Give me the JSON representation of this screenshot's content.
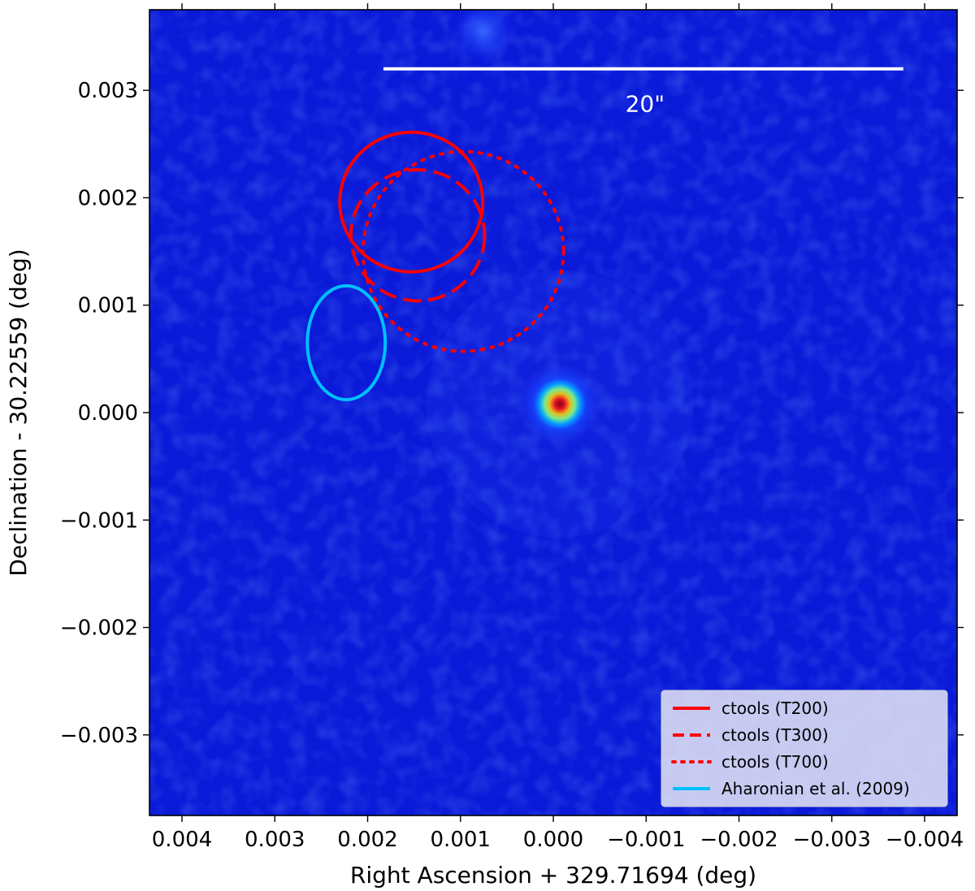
{
  "chart_data": {
    "type": "image",
    "xlabel": "Right Ascension + 329.71694 (deg)",
    "ylabel": "Declination - 30.22559 (deg)",
    "x_inverted": true,
    "xlim": [
      0.00435,
      -0.00435
    ],
    "ylim": [
      -0.00375,
      0.00375
    ],
    "x_ticks": [
      0.004,
      0.003,
      0.002,
      0.001,
      0.0,
      -0.001,
      -0.002,
      -0.003,
      -0.004
    ],
    "x_tick_labels": [
      "0.004",
      "0.003",
      "0.002",
      "0.001",
      "0.000",
      "−0.001",
      "−0.002",
      "−0.003",
      "−0.004"
    ],
    "y_ticks": [
      0.003,
      0.002,
      0.001,
      0.0,
      -0.001,
      -0.002,
      -0.003
    ],
    "y_tick_labels": [
      "0.003",
      "0.002",
      "0.001",
      "0.000",
      "−0.001",
      "−0.002",
      "−0.003"
    ],
    "colormap": "jet",
    "sources": [
      {
        "x": -7e-05,
        "y": 8e-05,
        "sigma": 0.00016,
        "peak": 1.0
      },
      {
        "x": 0.00075,
        "y": 0.00355,
        "sigma": 0.00015,
        "peak": 0.12
      }
    ],
    "scale_bar": {
      "x_start": 0.00183,
      "x_end": -0.00377,
      "y": 0.0032,
      "label": "20\""
    },
    "legend_position": "lower-right",
    "regions": [
      {
        "name": "ctools (T200)",
        "style": "solid",
        "color": "#ff0000",
        "cx": 0.00153,
        "cy": 0.00196,
        "rx": 0.00077,
        "ry": 0.00065
      },
      {
        "name": "ctools (T300)",
        "style": "dashed",
        "color": "#ff0000",
        "cx": 0.00146,
        "cy": 0.00165,
        "rx": 0.00072,
        "ry": 0.00061
      },
      {
        "name": "ctools (T700)",
        "style": "dotted",
        "color": "#ff0000",
        "cx": 0.00097,
        "cy": 0.0015,
        "rx": 0.00108,
        "ry": 0.00093
      },
      {
        "name": "Aharonian et al. (2009)",
        "style": "solid",
        "color": "#00bfff",
        "cx": 0.00223,
        "cy": 0.00065,
        "rx": 0.00042,
        "ry": 0.00053
      }
    ]
  }
}
